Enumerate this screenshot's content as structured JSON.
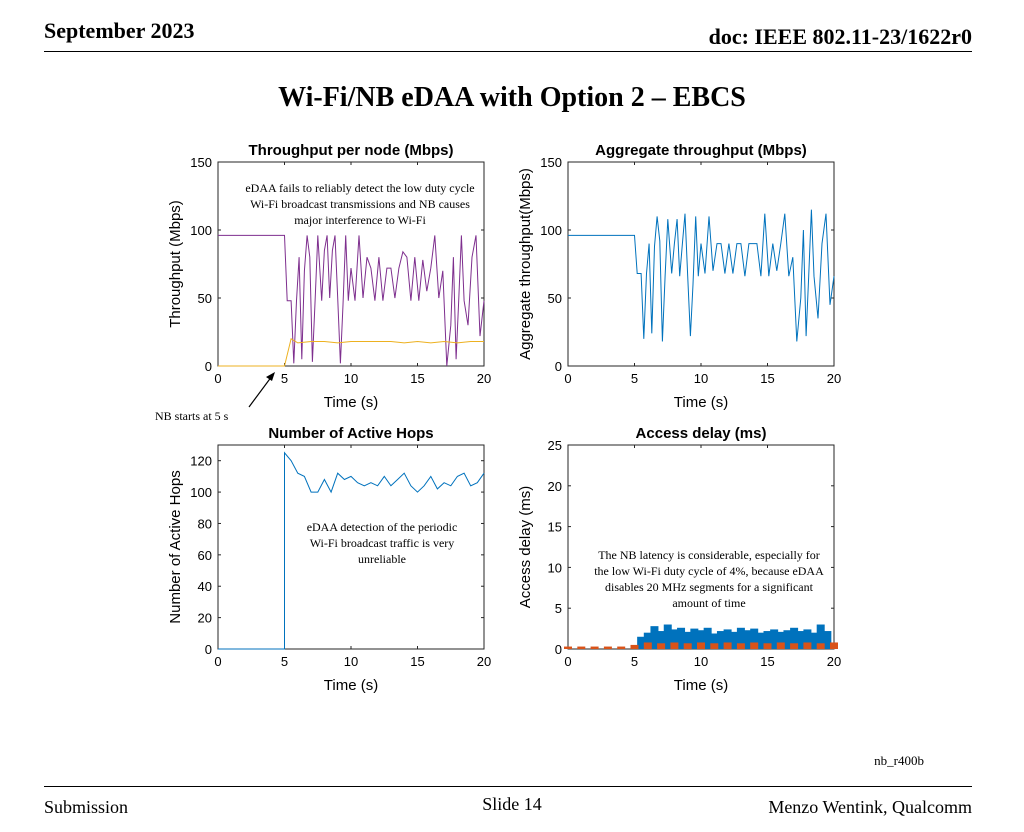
{
  "header": {
    "date": "September 2023",
    "doc": "doc: IEEE 802.11-23/1622r0"
  },
  "title": "Wi-Fi/NB eDAA with Option 2 – EBCS",
  "footer": {
    "left": "Submission",
    "center": "Slide 14",
    "right": "Menzo Wentink, Qualcomm"
  },
  "figure_id": "nb_r400b",
  "annotations": {
    "nb_start": "NB starts at 5 s",
    "throughput_note": "eDAA fails to reliably detect the low duty cycle Wi-Fi broadcast transmissions and NB causes major interference to Wi-Fi",
    "hops_note": "eDAA detection of the periodic Wi-Fi broadcast traffic is very unreliable",
    "delay_note": "The NB latency is considerable, especially for the low Wi-Fi duty cycle of 4%, because eDAA disables 20 MHz segments for a significant amount of time"
  },
  "colors": {
    "blue": "#0072BD",
    "orange": "#D95319",
    "yellow": "#EDB120",
    "purple": "#7E2F8E"
  },
  "chart_data": [
    {
      "id": "throughput",
      "type": "line",
      "title": "Throughput per node (Mbps)",
      "xlabel": "Time (s)",
      "ylabel": "Throughput (Mbps)",
      "xlim": [
        0,
        20
      ],
      "ylim": [
        0,
        150
      ],
      "xticks": [
        0,
        5,
        10,
        15,
        20
      ],
      "yticks": [
        0,
        50,
        100,
        150
      ],
      "series": [
        {
          "color": "#7E2F8E",
          "x": [
            0,
            5,
            5.2,
            5.5,
            5.7,
            5.9,
            6.1,
            6.3,
            6.5,
            6.7,
            6.9,
            7.1,
            7.3,
            7.5,
            7.8,
            8,
            8.2,
            8.4,
            8.6,
            8.8,
            9,
            9.2,
            9.4,
            9.6,
            9.8,
            10,
            10.3,
            10.6,
            10.9,
            11.2,
            11.5,
            11.8,
            12.1,
            12.4,
            12.7,
            13,
            13.3,
            13.6,
            13.9,
            14.2,
            14.5,
            14.8,
            15.1,
            15.4,
            15.7,
            16,
            16.3,
            16.6,
            16.9,
            17.2,
            17.5,
            17.7,
            17.9,
            18.1,
            18.3,
            18.5,
            18.8,
            19.1,
            19.4,
            19.7,
            20
          ],
          "y": [
            96,
            96,
            48,
            48,
            2,
            48,
            80,
            5,
            70,
            96,
            80,
            3,
            48,
            96,
            48,
            85,
            96,
            50,
            85,
            96,
            50,
            2,
            45,
            96,
            48,
            72,
            48,
            96,
            50,
            80,
            72,
            48,
            80,
            48,
            72,
            72,
            50,
            72,
            84,
            80,
            48,
            80,
            48,
            78,
            55,
            72,
            96,
            50,
            70,
            0,
            30,
            80,
            5,
            48,
            96,
            48,
            30,
            80,
            96,
            22,
            48
          ]
        },
        {
          "color": "#EDB120",
          "x": [
            0,
            5,
            5.5,
            6,
            7,
            8,
            9,
            10,
            11,
            12,
            13,
            14,
            15,
            16,
            17,
            18,
            19,
            20
          ],
          "y": [
            0,
            0,
            20,
            17,
            18,
            18,
            17,
            18,
            18,
            18,
            18,
            17,
            18,
            17,
            18,
            17,
            18,
            18
          ]
        }
      ]
    },
    {
      "id": "aggregate",
      "type": "line",
      "title": "Aggregate throughput (Mbps)",
      "xlabel": "Time (s)",
      "ylabel": "Aggregate throughput(Mbps)",
      "xlim": [
        0,
        20
      ],
      "ylim": [
        0,
        150
      ],
      "xticks": [
        0,
        5,
        10,
        15,
        20
      ],
      "yticks": [
        0,
        50,
        100,
        150
      ],
      "series": [
        {
          "color": "#0072BD",
          "x": [
            0,
            5,
            5.2,
            5.5,
            5.7,
            5.9,
            6.1,
            6.3,
            6.5,
            6.7,
            6.9,
            7.1,
            7.3,
            7.5,
            7.8,
            8,
            8.2,
            8.4,
            8.6,
            8.8,
            9,
            9.2,
            9.4,
            9.6,
            9.8,
            10,
            10.3,
            10.6,
            10.9,
            11.2,
            11.5,
            11.8,
            12.1,
            12.4,
            12.7,
            13,
            13.3,
            13.6,
            13.9,
            14.2,
            14.5,
            14.8,
            15.1,
            15.4,
            15.7,
            16,
            16.3,
            16.6,
            16.9,
            17.2,
            17.5,
            17.7,
            17.9,
            18.1,
            18.3,
            18.5,
            18.8,
            19.1,
            19.4,
            19.7,
            20
          ],
          "y": [
            96,
            96,
            68,
            68,
            20,
            68,
            90,
            24,
            88,
            110,
            92,
            18,
            66,
            108,
            68,
            90,
            108,
            66,
            90,
            112,
            66,
            22,
            60,
            110,
            66,
            90,
            68,
            110,
            70,
            90,
            90,
            68,
            90,
            68,
            90,
            90,
            66,
            90,
            90,
            90,
            66,
            112,
            66,
            90,
            70,
            90,
            112,
            66,
            80,
            18,
            50,
            100,
            22,
            66,
            115,
            66,
            35,
            90,
            112,
            45,
            66
          ]
        }
      ]
    },
    {
      "id": "hops",
      "type": "line",
      "title": "Number of Active Hops",
      "xlabel": "Time (s)",
      "ylabel": "Number of Active Hops",
      "xlim": [
        0,
        20
      ],
      "ylim": [
        0,
        130
      ],
      "xticks": [
        0,
        5,
        10,
        15,
        20
      ],
      "yticks": [
        0,
        20,
        40,
        60,
        80,
        100,
        120
      ],
      "series": [
        {
          "color": "#0072BD",
          "x": [
            0,
            5,
            5,
            5.5,
            6,
            6.5,
            7,
            7.5,
            8,
            8.5,
            9,
            9.5,
            10,
            10.5,
            11,
            11.5,
            12,
            12.5,
            13,
            13.5,
            14,
            14.5,
            15,
            15.5,
            16,
            16.5,
            17,
            17.5,
            18,
            18.5,
            19,
            19.5,
            20
          ],
          "y": [
            0,
            0,
            125,
            120,
            112,
            110,
            100,
            100,
            108,
            100,
            112,
            108,
            110,
            106,
            104,
            106,
            104,
            110,
            104,
            108,
            112,
            104,
            100,
            104,
            110,
            102,
            106,
            104,
            110,
            112,
            104,
            106,
            112
          ]
        }
      ]
    },
    {
      "id": "delay",
      "type": "bar",
      "title": "Access delay (ms)",
      "xlabel": "Time (s)",
      "ylabel": "Access delay (ms)",
      "xlim": [
        0,
        20
      ],
      "ylim": [
        0,
        25
      ],
      "xticks": [
        0,
        5,
        10,
        15,
        20
      ],
      "yticks": [
        0,
        5,
        10,
        15,
        20,
        25
      ],
      "series": [
        {
          "color": "#0072BD",
          "x": [
            5.5,
            6,
            6.5,
            7,
            7.5,
            8,
            8.5,
            9,
            9.5,
            10,
            10.5,
            11,
            11.5,
            12,
            12.5,
            13,
            13.5,
            14,
            14.5,
            15,
            15.5,
            16,
            16.5,
            17,
            17.5,
            18,
            18.5,
            19,
            19.5
          ],
          "y": [
            1.5,
            2,
            2.8,
            2.2,
            3,
            2.4,
            2.6,
            2.1,
            2.5,
            2.3,
            2.6,
            1.9,
            2.2,
            2.4,
            2.1,
            2.6,
            2.3,
            2.5,
            2,
            2.2,
            2.4,
            2.1,
            2.3,
            2.6,
            2.2,
            2.4,
            2,
            3,
            2.2
          ]
        },
        {
          "color": "#D95319",
          "x": [
            0,
            1,
            2,
            3,
            4,
            5,
            6,
            7,
            8,
            9,
            10,
            11,
            12,
            13,
            14,
            15,
            16,
            17,
            18,
            19,
            20
          ],
          "y": [
            0.3,
            0.3,
            0.3,
            0.3,
            0.3,
            0.5,
            0.8,
            0.7,
            0.8,
            0.7,
            0.8,
            0.7,
            0.8,
            0.7,
            0.8,
            0.7,
            0.8,
            0.7,
            0.8,
            0.7,
            0.8
          ]
        }
      ]
    }
  ]
}
